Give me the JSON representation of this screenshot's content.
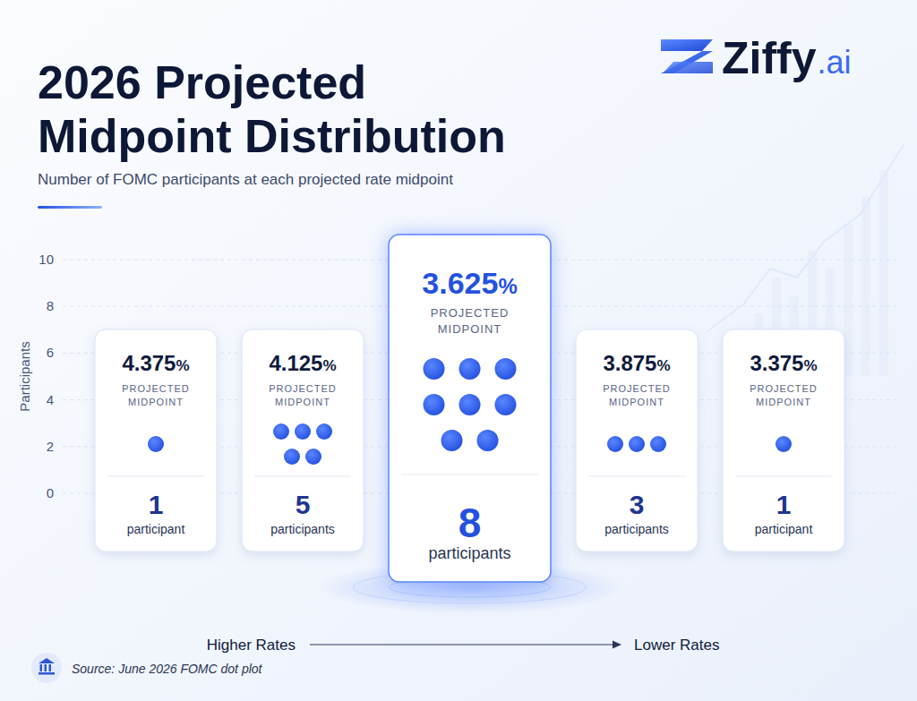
{
  "chart_data": {
    "type": "dot",
    "title": "2026 Projected Midpoint Distribution",
    "subtitle": "Number of FOMC participants at each projected rate midpoint",
    "ylabel": "Participants",
    "categories": [
      "4.375%",
      "4.125%",
      "3.625%",
      "3.875%",
      "3.375%"
    ],
    "values": [
      1,
      5,
      8,
      3,
      1
    ],
    "count_labels": [
      "participant",
      "participants",
      "participants",
      "participants",
      "participant"
    ],
    "category_caption": "PROJECTED MIDPOINT",
    "ylim": [
      0,
      10
    ],
    "yticks": [
      0,
      2,
      4,
      6,
      8,
      10
    ],
    "grid": true,
    "data_labels": true,
    "color": "#2451e0",
    "direction_labels": [
      "Higher Rates",
      "Lower Rates"
    ],
    "source": "Source: June 2026 FOMC dot plot",
    "brand": {
      "name": "Ziffy",
      "suffix": ".ai"
    }
  }
}
